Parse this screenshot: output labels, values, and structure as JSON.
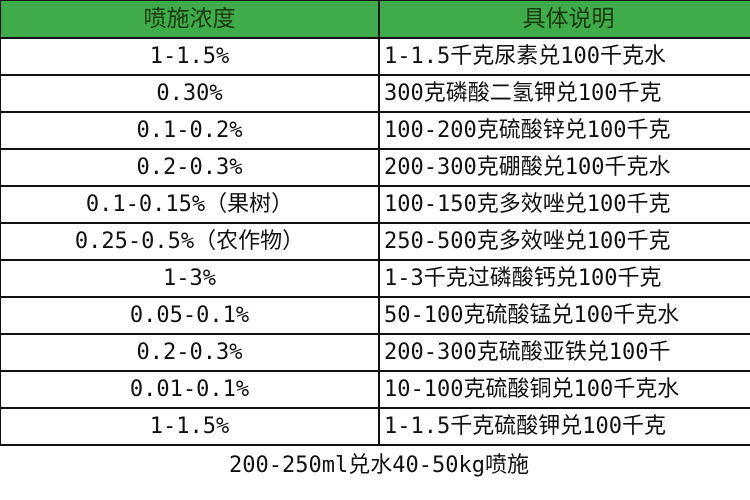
{
  "header": {
    "col1": "喷施浓度",
    "col2": "具体说明"
  },
  "header_color": "#3fab4a",
  "rows": [
    {
      "concentration": "1-1.5%",
      "description": "1-1.5千克尿素兑100千克水"
    },
    {
      "concentration": "0.30%",
      "description": "300克磷酸二氢钾兑100千克"
    },
    {
      "concentration": "0.1-0.2%",
      "description": "100-200克硫酸锌兑100千克"
    },
    {
      "concentration": "0.2-0.3%",
      "description": "200-300克硼酸兑100千克水"
    },
    {
      "concentration": "0.1-0.15%（果树）",
      "description": "100-150克多效唑兑100千克"
    },
    {
      "concentration": "0.25-0.5%（农作物）",
      "description": "250-500克多效唑兑100千克"
    },
    {
      "concentration": "1-3%",
      "description": "1-3千克过磷酸钙兑100千克"
    },
    {
      "concentration": "0.05-0.1%",
      "description": "50-100克硫酸锰兑100千克水"
    },
    {
      "concentration": "0.2-0.3%",
      "description": "200-300克硫酸亚铁兑100千"
    },
    {
      "concentration": "0.01-0.1%",
      "description": "10-100克硫酸铜兑100千克水"
    },
    {
      "concentration": "1-1.5%",
      "description": "1-1.5千克硫酸钾兑100千克"
    }
  ],
  "footer": "200-250ml兑水40-50kg喷施"
}
